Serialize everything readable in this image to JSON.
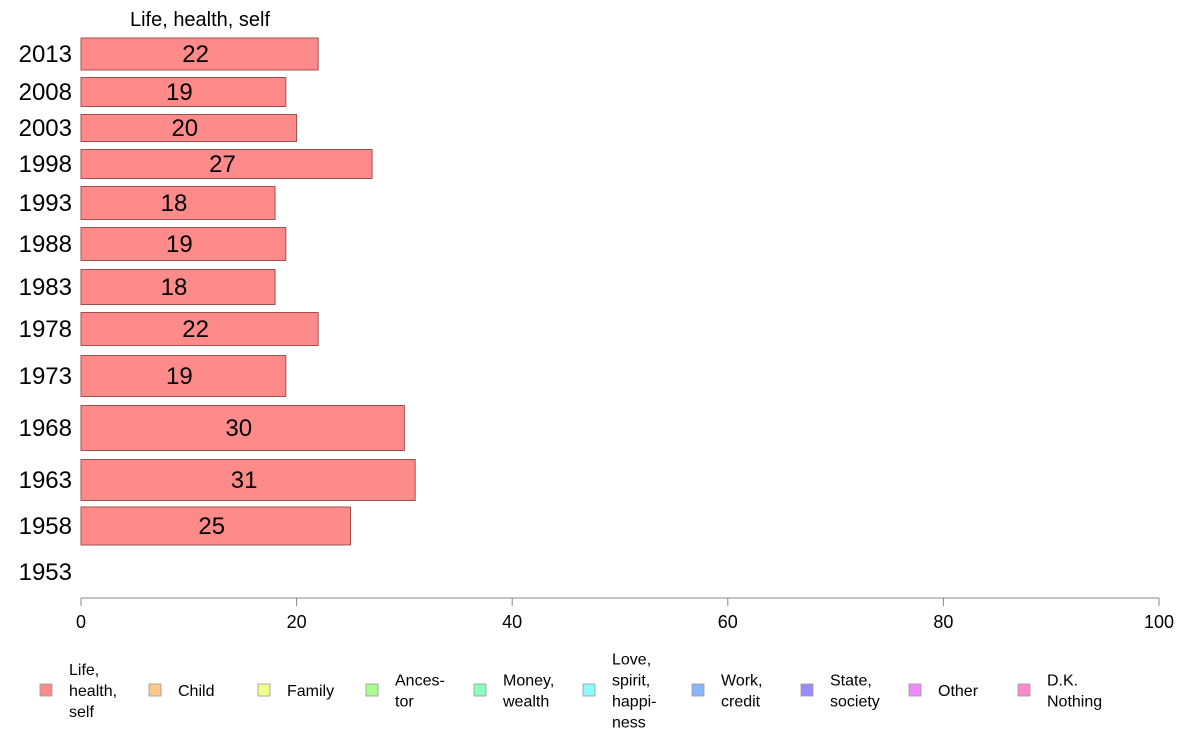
{
  "chart_data": {
    "type": "bar",
    "orientation": "horizontal",
    "title": "Life, health, self",
    "categories": [
      "2013",
      "2008",
      "2003",
      "1998",
      "1993",
      "1988",
      "1983",
      "1978",
      "1973",
      "1968",
      "1963",
      "1958",
      "1953"
    ],
    "series": [
      {
        "name": "Life, health, self",
        "values": [
          22,
          19,
          20,
          27,
          18,
          19,
          18,
          22,
          19,
          30,
          31,
          25,
          null
        ],
        "labels": [
          "22",
          "19",
          "20",
          "27",
          "18",
          "19",
          "18",
          "22",
          "19",
          "30",
          "31",
          "25",
          ""
        ]
      }
    ],
    "xlim": [
      0,
      100
    ],
    "xticks": [
      "0",
      "20",
      "40",
      "60",
      "80",
      "100"
    ],
    "grid": false,
    "legend_position": "bottom",
    "legend": [
      {
        "lines": [
          "Life,",
          "health,",
          "self"
        ],
        "color": "#ff8a8a"
      },
      {
        "lines": [
          "Child"
        ],
        "color": "#ffc78a"
      },
      {
        "lines": [
          "Family"
        ],
        "color": "#f2ff8a"
      },
      {
        "lines": [
          "Ances-",
          "tor"
        ],
        "color": "#a8ff8a"
      },
      {
        "lines": [
          "Money,",
          "wealth"
        ],
        "color": "#8affbf"
      },
      {
        "lines": [
          "Love,",
          "spirit,",
          "happi-",
          "ness"
        ],
        "color": "#8afcff"
      },
      {
        "lines": [
          "Work,",
          "credit"
        ],
        "color": "#8ab6ff"
      },
      {
        "lines": [
          "State,",
          "society"
        ],
        "color": "#9a8aff"
      },
      {
        "lines": [
          "Other"
        ],
        "color": "#ed8aff"
      },
      {
        "lines": [
          "D.K.",
          "Nothing"
        ],
        "color": "#ff8acb"
      }
    ],
    "colors": {
      "bar": "#ff8a8a",
      "bar_stroke": "#a05050",
      "axis": "#888888"
    }
  }
}
